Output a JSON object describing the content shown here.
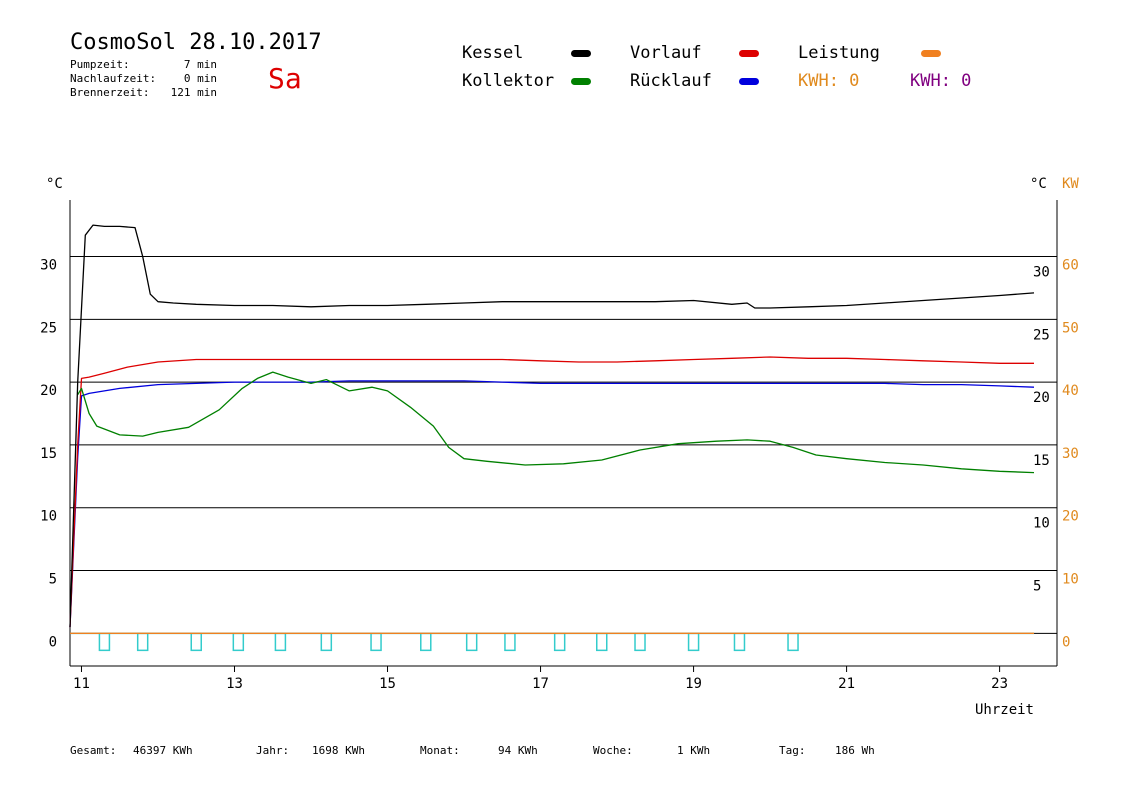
{
  "header": {
    "title": "CosmoSol 28.10.2017",
    "weekday": "Sa",
    "stats": [
      {
        "label": "Pumpzeit:",
        "value": "7 min"
      },
      {
        "label": "Nachlaufzeit:",
        "value": "0 min"
      },
      {
        "label": "Brennerzeit:",
        "value": "121 min"
      }
    ]
  },
  "legend": {
    "items": [
      {
        "label": "Kessel",
        "color": "#000000"
      },
      {
        "label": "Vorlauf",
        "color": "#dd0000"
      },
      {
        "label": "Leistung",
        "color": "#f08020"
      },
      {
        "label": "Kollektor",
        "color": "#008000"
      },
      {
        "label": "Rücklauf",
        "color": "#0000dd"
      }
    ],
    "kwh_orange": "KWH: 0",
    "kwh_purple": "KWH: 0",
    "kwh_orange_color": "#e08a1e",
    "kwh_purple_color": "#800080"
  },
  "footer": [
    {
      "label": "Gesamt:",
      "value": "46397 KWh"
    },
    {
      "label": "Jahr:",
      "value": "1698 KWh"
    },
    {
      "label": "Monat:",
      "value": "94 KWh"
    },
    {
      "label": "Woche:",
      "value": "1 KWh"
    },
    {
      "label": "Tag:",
      "value": "186 Wh"
    }
  ],
  "chart_data": {
    "type": "line",
    "xlabel": "Uhrzeit",
    "ylabel_left": "°C",
    "ylabel_right": "°C",
    "ylabel_right2": "KW",
    "xlim": [
      10.85,
      23.75
    ],
    "ylim_left": [
      -2.6,
      34.5
    ],
    "x_ticks": [
      11,
      13,
      15,
      17,
      19,
      21,
      23
    ],
    "y_ticks_left": [
      0,
      5,
      10,
      15,
      20,
      25,
      30
    ],
    "y_ticks_right_celsius": [
      5,
      10,
      15,
      20,
      25,
      30
    ],
    "y_ticks_right_kw": [
      0,
      10,
      20,
      30,
      40,
      50,
      60
    ],
    "right_celsius_color": "#000000",
    "right_kw_color": "#e08a1e",
    "grid": "horizontal",
    "series": [
      {
        "name": "Kessel",
        "color": "#000000",
        "x": [
          10.85,
          10.95,
          11.05,
          11.15,
          11.3,
          11.5,
          11.7,
          11.8,
          11.9,
          12.0,
          12.2,
          12.5,
          13.0,
          13.5,
          14.0,
          14.5,
          15.0,
          15.5,
          16.0,
          16.5,
          17.0,
          17.5,
          18.0,
          18.5,
          19.0,
          19.5,
          19.7,
          19.8,
          20.0,
          20.5,
          21.0,
          21.5,
          22.0,
          22.5,
          23.0,
          23.45
        ],
        "y": [
          0.5,
          20,
          31.7,
          32.5,
          32.4,
          32.4,
          32.3,
          30,
          27,
          26.4,
          26.3,
          26.2,
          26.1,
          26.1,
          26.0,
          26.1,
          26.1,
          26.2,
          26.3,
          26.4,
          26.4,
          26.4,
          26.4,
          26.4,
          26.5,
          26.2,
          26.3,
          25.9,
          25.9,
          26.0,
          26.1,
          26.3,
          26.5,
          26.7,
          26.9,
          27.1
        ]
      },
      {
        "name": "Vorlauf",
        "color": "#dd0000",
        "x": [
          10.85,
          10.95,
          11.0,
          11.1,
          11.3,
          11.6,
          12.0,
          12.5,
          13.0,
          13.5,
          14.0,
          14.5,
          15.0,
          15.5,
          16.0,
          16.5,
          17.0,
          17.5,
          18.0,
          18.5,
          19.0,
          19.5,
          20.0,
          20.5,
          21.0,
          21.5,
          22.0,
          22.5,
          23.0,
          23.45
        ],
        "y": [
          0.5,
          15,
          20.3,
          20.4,
          20.7,
          21.2,
          21.6,
          21.8,
          21.8,
          21.8,
          21.8,
          21.8,
          21.8,
          21.8,
          21.8,
          21.8,
          21.7,
          21.6,
          21.6,
          21.7,
          21.8,
          21.9,
          22.0,
          21.9,
          21.9,
          21.8,
          21.7,
          21.6,
          21.5,
          21.5
        ]
      },
      {
        "name": "Rücklauf",
        "color": "#0000dd",
        "x": [
          10.85,
          10.95,
          11.0,
          11.1,
          11.5,
          12.0,
          12.5,
          13.0,
          13.5,
          14.0,
          14.5,
          15.0,
          15.5,
          16.0,
          16.5,
          17.0,
          17.5,
          18.0,
          18.5,
          19.0,
          19.5,
          20.0,
          20.5,
          21.0,
          21.5,
          22.0,
          22.5,
          23.0,
          23.45
        ],
        "y": [
          0.5,
          14,
          18.9,
          19.1,
          19.5,
          19.8,
          19.9,
          20.0,
          20.0,
          20.0,
          20.1,
          20.1,
          20.1,
          20.1,
          20.0,
          19.9,
          19.9,
          19.9,
          19.9,
          19.9,
          19.9,
          19.9,
          19.9,
          19.9,
          19.9,
          19.8,
          19.8,
          19.7,
          19.6
        ]
      },
      {
        "name": "Kollektor",
        "color": "#008000",
        "x": [
          10.95,
          11.0,
          11.1,
          11.2,
          11.5,
          11.8,
          12.0,
          12.4,
          12.8,
          13.1,
          13.3,
          13.5,
          13.7,
          14.0,
          14.2,
          14.3,
          14.5,
          14.8,
          15.0,
          15.3,
          15.6,
          15.8,
          16.0,
          16.3,
          16.8,
          17.3,
          17.8,
          18.3,
          18.8,
          19.3,
          19.7,
          20.0,
          20.3,
          20.6,
          21.0,
          21.5,
          22.0,
          22.5,
          23.0,
          23.45
        ],
        "y": [
          19,
          19.5,
          17.5,
          16.5,
          15.8,
          15.7,
          16.0,
          16.4,
          17.8,
          19.5,
          20.3,
          20.8,
          20.4,
          19.9,
          20.2,
          19.9,
          19.3,
          19.6,
          19.3,
          18.0,
          16.5,
          14.8,
          13.9,
          13.7,
          13.4,
          13.5,
          13.8,
          14.6,
          15.1,
          15.3,
          15.4,
          15.3,
          14.8,
          14.2,
          13.9,
          13.6,
          13.4,
          13.1,
          12.9,
          12.8
        ]
      },
      {
        "name": "Leistung",
        "color": "#f08020",
        "x": [
          10.85,
          23.45
        ],
        "y": [
          0,
          0
        ]
      }
    ],
    "pump_pulses": {
      "color": "#33cccc",
      "x": [
        11.3,
        11.8,
        12.5,
        13.05,
        13.6,
        14.2,
        14.85,
        15.5,
        16.1,
        16.6,
        17.25,
        17.8,
        18.3,
        19.0,
        19.6,
        20.3
      ]
    }
  }
}
